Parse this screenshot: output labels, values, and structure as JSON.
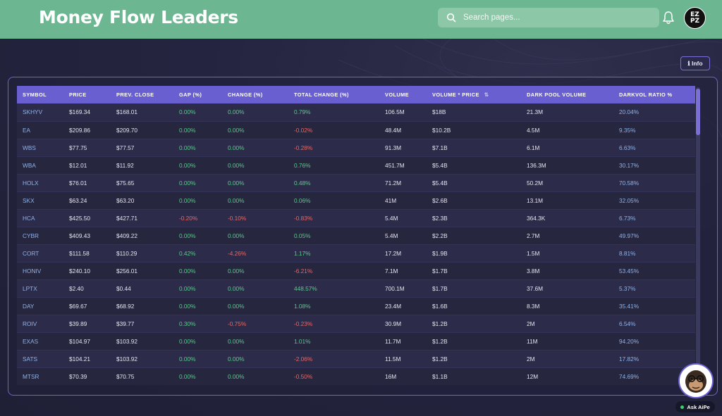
{
  "header": {
    "title": "Money Flow Leaders",
    "search_placeholder": "Search pages...",
    "avatar_line1": "EZ",
    "avatar_line2": "PZ"
  },
  "info_button": "ℹ Info",
  "table": {
    "columns": [
      "SYMBOL",
      "PRICE",
      "PREV. CLOSE",
      "GAP (%)",
      "CHANGE (%)",
      "TOTAL CHANGE (%)",
      "VOLUME",
      "VOLUME * PRICE",
      "DARK POOL VOLUME",
      "DARKVOL RATIO %"
    ],
    "rows": [
      [
        "SKHYV",
        "$169.34",
        "$168.01",
        "0.00%",
        "0.00%",
        "0.79%",
        "106.5M",
        "$18B",
        "21.3M",
        "20.04%"
      ],
      [
        "EA",
        "$209.86",
        "$209.70",
        "0.00%",
        "0.00%",
        "-0.02%",
        "48.4M",
        "$10.2B",
        "4.5M",
        "9.35%"
      ],
      [
        "WBS",
        "$77.75",
        "$77.57",
        "0.00%",
        "0.00%",
        "-0.28%",
        "91.3M",
        "$7.1B",
        "6.1M",
        "6.63%"
      ],
      [
        "WBA",
        "$12.01",
        "$11.92",
        "0.00%",
        "0.00%",
        "0.76%",
        "451.7M",
        "$5.4B",
        "136.3M",
        "30.17%"
      ],
      [
        "HOLX",
        "$76.01",
        "$75.65",
        "0.00%",
        "0.00%",
        "0.48%",
        "71.2M",
        "$5.4B",
        "50.2M",
        "70.58%"
      ],
      [
        "SKX",
        "$63.24",
        "$63.20",
        "0.00%",
        "0.00%",
        "0.06%",
        "41M",
        "$2.6B",
        "13.1M",
        "32.05%"
      ],
      [
        "HCA",
        "$425.50",
        "$427.71",
        "-0.20%",
        "-0.10%",
        "-0.83%",
        "5.4M",
        "$2.3B",
        "364.3K",
        "6.73%"
      ],
      [
        "CYBR",
        "$409.43",
        "$409.22",
        "0.00%",
        "0.00%",
        "0.05%",
        "5.4M",
        "$2.2B",
        "2.7M",
        "49.97%"
      ],
      [
        "CORT",
        "$111.58",
        "$110.29",
        "0.42%",
        "-4.26%",
        "1.17%",
        "17.2M",
        "$1.9B",
        "1.5M",
        "8.81%"
      ],
      [
        "HONIV",
        "$240.10",
        "$256.01",
        "0.00%",
        "0.00%",
        "-6.21%",
        "7.1M",
        "$1.7B",
        "3.8M",
        "53.45%"
      ],
      [
        "LPTX",
        "$2.40",
        "$0.44",
        "0.00%",
        "0.00%",
        "448.57%",
        "700.1M",
        "$1.7B",
        "37.6M",
        "5.37%"
      ],
      [
        "DAY",
        "$69.67",
        "$68.92",
        "0.00%",
        "0.00%",
        "1.08%",
        "23.4M",
        "$1.6B",
        "8.3M",
        "35.41%"
      ],
      [
        "ROIV",
        "$39.89",
        "$39.77",
        "0.30%",
        "-0.75%",
        "-0.23%",
        "30.9M",
        "$1.2B",
        "2M",
        "6.54%"
      ],
      [
        "EXAS",
        "$104.97",
        "$103.92",
        "0.00%",
        "0.00%",
        "1.01%",
        "11.7M",
        "$1.2B",
        "11M",
        "94.20%"
      ],
      [
        "SATS",
        "$104.21",
        "$103.92",
        "0.00%",
        "0.00%",
        "-2.06%",
        "11.5M",
        "$1.2B",
        "2M",
        "17.82%"
      ],
      [
        "MTSR",
        "$70.39",
        "$70.75",
        "0.00%",
        "0.00%",
        "-0.50%",
        "16M",
        "$1.1B",
        "12M",
        "74.69%"
      ]
    ]
  },
  "ask_aipe_label": "Ask AiPe",
  "colors": {
    "header_bg": "#6cb791",
    "table_header_bg": "#6a5fd1",
    "positive": "#5cc98a",
    "negative": "#e06a6a",
    "symbol": "#8fb3e8"
  }
}
